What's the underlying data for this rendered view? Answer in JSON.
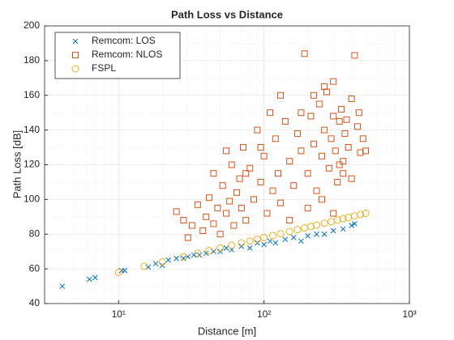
{
  "chart_data": {
    "type": "scatter",
    "title": "Path Loss vs Distance",
    "x_label": "Distance [m]",
    "y_label": "Path Loss [dB]",
    "xscale": "log",
    "xlim": [
      3.1,
      1000
    ],
    "ylim": [
      40,
      200
    ],
    "xticks": [
      {
        "value": 10,
        "label": "10¹"
      },
      {
        "value": 100,
        "label": "10²"
      },
      {
        "value": 1000,
        "label": "10³"
      }
    ],
    "xminorticks": [
      4,
      5,
      6,
      7,
      8,
      9,
      20,
      30,
      40,
      50,
      60,
      70,
      80,
      90,
      200,
      300,
      400,
      500,
      600,
      700,
      800,
      900
    ],
    "yticks": [
      40,
      60,
      80,
      100,
      120,
      140,
      160,
      180,
      200
    ],
    "yminorticks": [
      50,
      70,
      90,
      110,
      130,
      150,
      170,
      190
    ],
    "grid": true,
    "legend": "upper left",
    "series": [
      {
        "name": "Remcom: LOS",
        "marker": "x",
        "color": "#0072BD",
        "x": [
          4.1,
          6.3,
          6.9,
          10.5,
          11,
          16,
          18,
          20,
          22,
          25,
          28,
          30,
          33,
          36,
          40,
          45,
          50,
          55,
          60,
          70,
          80,
          90,
          100,
          110,
          120,
          140,
          160,
          180,
          200,
          230,
          260,
          300,
          350,
          400,
          420
        ],
        "values": [
          50,
          54,
          55,
          59,
          59,
          61,
          63,
          62,
          65,
          66,
          66,
          67,
          68,
          68,
          69,
          70,
          70,
          72,
          71,
          73,
          72,
          75,
          74,
          76,
          75,
          77,
          78,
          76,
          79,
          80,
          80,
          82,
          83,
          85,
          86
        ]
      },
      {
        "name": "Remcom: NLOS",
        "marker": "square",
        "color": "#D95319",
        "x": [
          25,
          28,
          30,
          32,
          35,
          38,
          40,
          42,
          45,
          48,
          50,
          52,
          55,
          58,
          60,
          62,
          65,
          68,
          70,
          72,
          75,
          80,
          85,
          90,
          95,
          100,
          105,
          110,
          115,
          120,
          125,
          130,
          140,
          150,
          160,
          170,
          180,
          190,
          200,
          210,
          220,
          230,
          240,
          250,
          260,
          270,
          280,
          290,
          300,
          310,
          320,
          330,
          340,
          350,
          360,
          380,
          400,
          420,
          440,
          460,
          480,
          500,
          200,
          250,
          300,
          350,
          400,
          150,
          180,
          220,
          260,
          300,
          330,
          370,
          450,
          95,
          75,
          55,
          130,
          45
        ],
        "values": [
          93,
          88,
          78,
          85,
          97,
          82,
          90,
          101,
          86,
          95,
          80,
          108,
          92,
          99,
          120,
          85,
          104,
          112,
          95,
          130,
          88,
          118,
          100,
          140,
          110,
          125,
          92,
          150,
          105,
          135,
          115,
          98,
          145,
          122,
          108,
          138,
          128,
          184,
          115,
          148,
          132,
          105,
          155,
          125,
          140,
          162,
          118,
          135,
          168,
          128,
          110,
          145,
          152,
          122,
          138,
          130,
          158,
          183,
          142,
          127,
          135,
          128,
          95,
          100,
          92,
          115,
          112,
          88,
          150,
          160,
          165,
          148,
          120,
          146,
          150,
          130,
          115,
          128,
          160,
          115
        ]
      },
      {
        "name": "FSPL",
        "marker": "circle",
        "color": "#EDB120",
        "x": [
          10,
          15,
          20,
          28,
          35,
          42,
          50,
          60,
          70,
          80,
          90,
          100,
          115,
          130,
          150,
          170,
          190,
          210,
          230,
          260,
          290,
          320,
          350,
          380,
          420,
          460,
          500
        ],
        "values": [
          58,
          61.5,
          64,
          67,
          69,
          70.5,
          72,
          73.6,
          75,
          76,
          77,
          78,
          79.2,
          80.3,
          81.5,
          82.6,
          83.6,
          84.4,
          85.2,
          86.3,
          87.2,
          88.1,
          88.9,
          89.6,
          90.5,
          91.3,
          92
        ]
      }
    ]
  }
}
